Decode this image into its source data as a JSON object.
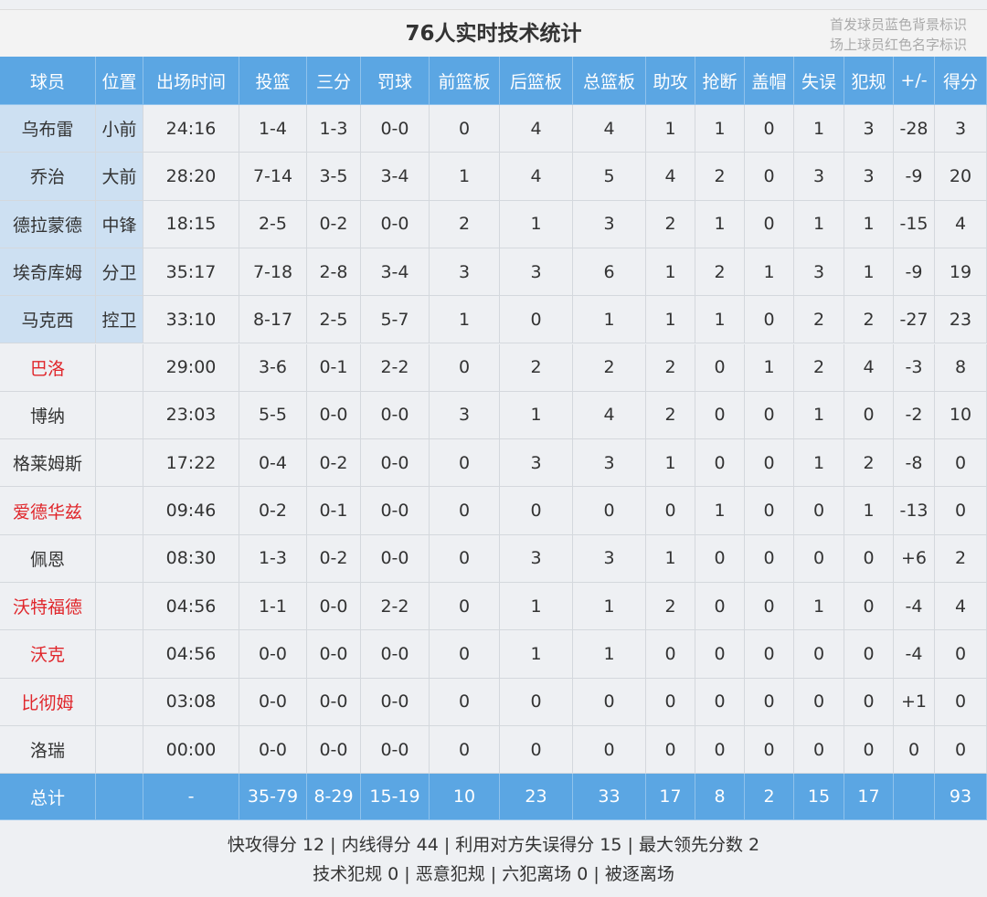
{
  "header": {
    "title": "76人实时技术统计",
    "notes": [
      "首发球员蓝色背景标识",
      "场上球员红色名字标识"
    ]
  },
  "table": {
    "header": [
      "球员",
      "位置",
      "出场时间",
      "投篮",
      "三分",
      "罚球",
      "前篮板",
      "后篮板",
      "总篮板",
      "助攻",
      "抢断",
      "盖帽",
      "失误",
      "犯规",
      "+/-",
      "得分"
    ],
    "rows": [
      {
        "starter": true,
        "on_court": false,
        "cells": [
          "乌布雷",
          "小前",
          "24:16",
          "1-4",
          "1-3",
          "0-0",
          0,
          4,
          4,
          1,
          1,
          0,
          1,
          3,
          -28,
          3
        ]
      },
      {
        "starter": true,
        "on_court": false,
        "cells": [
          "乔治",
          "大前",
          "28:20",
          "7-14",
          "3-5",
          "3-4",
          1,
          4,
          5,
          4,
          2,
          0,
          3,
          3,
          -9,
          20
        ]
      },
      {
        "starter": true,
        "on_court": false,
        "cells": [
          "德拉蒙德",
          "中锋",
          "18:15",
          "2-5",
          "0-2",
          "0-0",
          2,
          1,
          3,
          2,
          1,
          0,
          1,
          1,
          -15,
          4
        ]
      },
      {
        "starter": true,
        "on_court": false,
        "cells": [
          "埃奇库姆",
          "分卫",
          "35:17",
          "7-18",
          "2-8",
          "3-4",
          3,
          3,
          6,
          1,
          2,
          1,
          3,
          1,
          -9,
          19
        ]
      },
      {
        "starter": true,
        "on_court": false,
        "cells": [
          "马克西",
          "控卫",
          "33:10",
          "8-17",
          "2-5",
          "5-7",
          1,
          0,
          1,
          1,
          1,
          0,
          2,
          2,
          -27,
          23
        ]
      },
      {
        "starter": false,
        "on_court": true,
        "cells": [
          "巴洛",
          null,
          "29:00",
          "3-6",
          "0-1",
          "2-2",
          0,
          2,
          2,
          2,
          0,
          1,
          2,
          4,
          -3,
          8
        ]
      },
      {
        "starter": false,
        "on_court": false,
        "cells": [
          "博纳",
          null,
          "23:03",
          "5-5",
          "0-0",
          "0-0",
          3,
          1,
          4,
          2,
          0,
          0,
          1,
          0,
          -2,
          10
        ]
      },
      {
        "starter": false,
        "on_court": false,
        "cells": [
          "格莱姆斯",
          null,
          "17:22",
          "0-4",
          "0-2",
          "0-0",
          0,
          3,
          3,
          1,
          0,
          0,
          1,
          2,
          -8,
          0
        ]
      },
      {
        "starter": false,
        "on_court": true,
        "cells": [
          "爱德华兹",
          null,
          "09:46",
          "0-2",
          "0-1",
          "0-0",
          0,
          0,
          0,
          0,
          1,
          0,
          0,
          1,
          -13,
          0
        ]
      },
      {
        "starter": false,
        "on_court": false,
        "cells": [
          "佩恩",
          null,
          "08:30",
          "1-3",
          "0-2",
          "0-0",
          0,
          3,
          3,
          1,
          0,
          0,
          0,
          0,
          "+6",
          2
        ]
      },
      {
        "starter": false,
        "on_court": true,
        "cells": [
          "沃特福德",
          null,
          "04:56",
          "1-1",
          "0-0",
          "2-2",
          0,
          1,
          1,
          2,
          0,
          0,
          1,
          0,
          -4,
          4
        ]
      },
      {
        "starter": false,
        "on_court": true,
        "cells": [
          "沃克",
          null,
          "04:56",
          "0-0",
          "0-0",
          "0-0",
          0,
          1,
          1,
          0,
          0,
          0,
          0,
          0,
          -4,
          0
        ]
      },
      {
        "starter": false,
        "on_court": true,
        "cells": [
          "比彻姆",
          null,
          "03:08",
          "0-0",
          "0-0",
          "0-0",
          0,
          0,
          0,
          0,
          0,
          0,
          0,
          0,
          "+1",
          0
        ]
      },
      {
        "starter": false,
        "on_court": false,
        "cells": [
          "洛瑞",
          null,
          "00:00",
          "0-0",
          "0-0",
          "0-0",
          0,
          0,
          0,
          0,
          0,
          0,
          0,
          0,
          0,
          0
        ]
      }
    ],
    "total": [
      "总计",
      null,
      "-",
      "35-79",
      "8-29",
      "15-19",
      10,
      23,
      33,
      17,
      8,
      2,
      15,
      17,
      null,
      93
    ]
  },
  "footer": [
    "快攻得分 12 | 内线得分 44 | 利用对方失误得分 15 | 最大领先分数 2",
    "技术犯规 0 | 恶意犯规  | 六犯离场 0 | 被逐离场"
  ]
}
